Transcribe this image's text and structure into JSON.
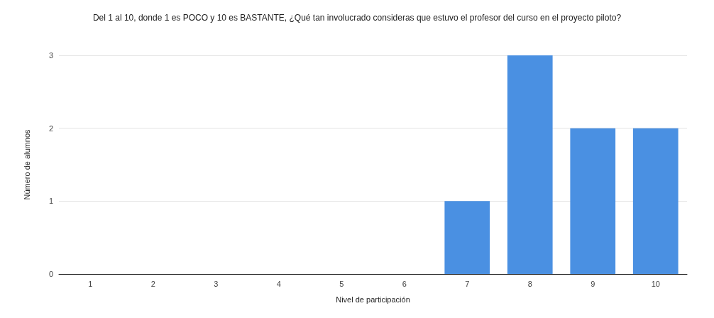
{
  "chart_data": {
    "type": "bar",
    "title": "Del 1 al 10, donde 1 es POCO y 10 es BASTANTE, ¿Qué tan involucrado consideras que estuvo el profesor del curso en el proyecto piloto?",
    "xlabel": "Nivel de participación",
    "ylabel": "Número de alumnos",
    "categories": [
      "1",
      "2",
      "3",
      "4",
      "5",
      "6",
      "7",
      "8",
      "9",
      "10"
    ],
    "values": [
      0,
      0,
      0,
      0,
      0,
      0,
      1,
      3,
      2,
      2
    ],
    "color": "#4a90e2",
    "ylim": [
      0,
      3
    ],
    "yticks": [
      0,
      1,
      2,
      3
    ],
    "grid": "y"
  }
}
